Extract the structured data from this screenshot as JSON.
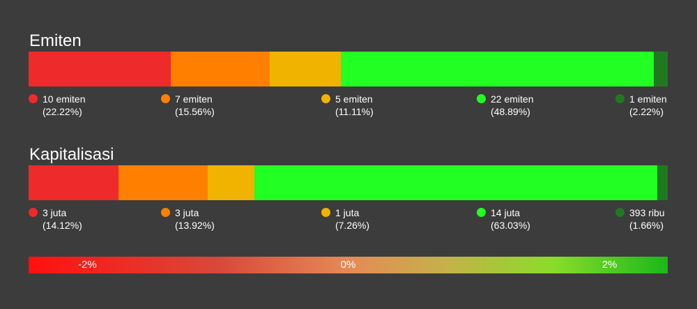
{
  "sections": [
    {
      "title": "Emiten"
    },
    {
      "title": "Kapitalisasi"
    }
  ],
  "chart_data": [
    {
      "type": "bar",
      "orientation": "horizontal-stacked-100",
      "title": "Emiten",
      "segments": [
        {
          "value": 10,
          "value_label": "10 emiten",
          "percent": 22.22,
          "percent_label": "(22.22%)",
          "color": "#ee2a2a"
        },
        {
          "value": 7,
          "value_label": "7 emiten",
          "percent": 15.56,
          "percent_label": "(15.56%)",
          "color": "#ff8000"
        },
        {
          "value": 5,
          "value_label": "5 emiten",
          "percent": 11.11,
          "percent_label": "(11.11%)",
          "color": "#f0b400"
        },
        {
          "value": 22,
          "value_label": "22 emiten",
          "percent": 48.89,
          "percent_label": "(48.89%)",
          "color": "#22ff22"
        },
        {
          "value": 1,
          "value_label": "1 emiten",
          "percent": 2.22,
          "percent_label": "(2.22%)",
          "color": "#1f7a1f"
        }
      ]
    },
    {
      "type": "bar",
      "orientation": "horizontal-stacked-100",
      "title": "Kapitalisasi",
      "segments": [
        {
          "value_label": "3 juta",
          "percent": 14.12,
          "percent_label": "(14.12%)",
          "color": "#ee2a2a"
        },
        {
          "value_label": "3 juta",
          "percent": 13.92,
          "percent_label": "(13.92%)",
          "color": "#ff8000"
        },
        {
          "value_label": "1 juta",
          "percent": 7.26,
          "percent_label": "(7.26%)",
          "color": "#f0b400"
        },
        {
          "value_label": "14 juta",
          "percent": 63.03,
          "percent_label": "(63.03%)",
          "color": "#22ff22"
        },
        {
          "value_label": "393 ribu",
          "percent": 1.66,
          "percent_label": "(1.66%)",
          "color": "#1f7a1f"
        }
      ]
    }
  ],
  "color_scale": {
    "labels": [
      "-2%",
      "0%",
      "2%"
    ],
    "from_color": "#ff1010",
    "mid_color": "#e58a56",
    "to_color": "#1ab81a"
  }
}
